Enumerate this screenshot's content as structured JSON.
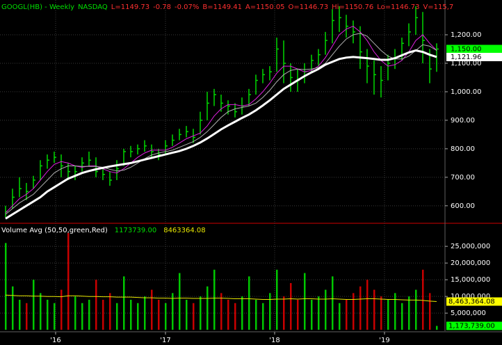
{
  "chart_data": [
    {
      "type": "ohlc",
      "title": "GOOGL(HB) - Weekly",
      "exchange": "NASDAQ",
      "title_color": "#00e000",
      "quote": [
        "L=1149.73",
        "-0.78",
        "-0.07%",
        "B=1149.41",
        "A=1150.05",
        "O=1146.73",
        "Hi=1150.76",
        "Lo=1146.73",
        "V=115,7"
      ],
      "quote_color": "#ff3030",
      "bar_color": "#00d800",
      "high": [
        600,
        660,
        700,
        680,
        705,
        760,
        780,
        790,
        780,
        750,
        740,
        770,
        790,
        770,
        730,
        720,
        760,
        800,
        810,
        815,
        830,
        815,
        800,
        830,
        850,
        870,
        880,
        870,
        930,
        1000,
        1010,
        990,
        970,
        960,
        980,
        1010,
        1060,
        1080,
        1090,
        1190,
        1180,
        1100,
        1080,
        1100,
        1130,
        1150,
        1210,
        1290,
        1300,
        1270,
        1250,
        1230,
        1150,
        1110,
        1090,
        1130,
        1150,
        1190,
        1240,
        1300,
        1280,
        1150,
        1170
      ],
      "low": [
        560,
        590,
        630,
        620,
        660,
        690,
        730,
        750,
        700,
        690,
        690,
        720,
        740,
        700,
        690,
        670,
        690,
        740,
        770,
        780,
        790,
        770,
        760,
        780,
        810,
        830,
        840,
        820,
        850,
        900,
        950,
        930,
        920,
        910,
        920,
        950,
        990,
        1030,
        1040,
        1070,
        1030,
        1000,
        1000,
        1030,
        1070,
        1090,
        1130,
        1170,
        1210,
        1190,
        1170,
        1080,
        1030,
        990,
        980,
        1040,
        1080,
        1110,
        1160,
        1200,
        1100,
        1030,
        1070
      ],
      "close": [
        580,
        630,
        660,
        650,
        690,
        740,
        760,
        770,
        740,
        720,
        720,
        750,
        760,
        720,
        710,
        690,
        730,
        790,
        790,
        800,
        810,
        790,
        780,
        810,
        830,
        850,
        860,
        840,
        900,
        960,
        990,
        960,
        950,
        930,
        950,
        990,
        1040,
        1060,
        1070,
        1150,
        1100,
        1050,
        1040,
        1070,
        1110,
        1130,
        1180,
        1250,
        1260,
        1230,
        1210,
        1140,
        1090,
        1060,
        1040,
        1100,
        1120,
        1170,
        1210,
        1260,
        1180,
        1080,
        1150
      ],
      "overlays": [
        {
          "color": "#e020e0",
          "width": 1,
          "values": [
            575,
            600,
            625,
            640,
            660,
            690,
            720,
            745,
            755,
            750,
            740,
            735,
            740,
            740,
            730,
            720,
            715,
            730,
            750,
            770,
            785,
            795,
            795,
            795,
            805,
            820,
            835,
            845,
            855,
            880,
            915,
            940,
            955,
            955,
            950,
            955,
            975,
            1000,
            1030,
            1065,
            1090,
            1090,
            1080,
            1070,
            1075,
            1090,
            1120,
            1160,
            1200,
            1220,
            1230,
            1210,
            1180,
            1140,
            1110,
            1090,
            1095,
            1110,
            1140,
            1180,
            1200,
            1170,
            1145
          ]
        },
        {
          "color": "#b0b0b0",
          "width": 1,
          "values": [
            570,
            590,
            610,
            625,
            640,
            665,
            690,
            715,
            730,
            740,
            740,
            738,
            738,
            738,
            735,
            728,
            722,
            725,
            735,
            750,
            765,
            778,
            785,
            790,
            795,
            805,
            815,
            825,
            840,
            860,
            885,
            910,
            930,
            940,
            945,
            950,
            960,
            980,
            1005,
            1035,
            1060,
            1075,
            1080,
            1078,
            1080,
            1085,
            1100,
            1130,
            1160,
            1185,
            1200,
            1205,
            1195,
            1170,
            1145,
            1125,
            1115,
            1115,
            1125,
            1145,
            1165,
            1160,
            1145
          ]
        },
        {
          "color": "#ffffff",
          "width": 3,
          "values": [
            555,
            570,
            585,
            600,
            615,
            630,
            650,
            665,
            680,
            695,
            705,
            715,
            722,
            728,
            733,
            738,
            742,
            746,
            750,
            756,
            762,
            768,
            774,
            780,
            786,
            792,
            800,
            810,
            822,
            836,
            852,
            868,
            882,
            895,
            908,
            920,
            935,
            952,
            970,
            990,
            1010,
            1025,
            1040,
            1055,
            1068,
            1080,
            1095,
            1105,
            1115,
            1120,
            1122,
            1120,
            1118,
            1115,
            1112,
            1112,
            1118,
            1128,
            1138,
            1145,
            1140,
            1130,
            1122
          ]
        }
      ],
      "xlim": [
        -0.8,
        63.2
      ],
      "xticks": [
        {
          "value": 7.2,
          "label": "'16"
        },
        {
          "value": 23,
          "label": "'17"
        },
        {
          "value": 38.7,
          "label": "'18"
        },
        {
          "value": 54.5,
          "label": "'19"
        }
      ],
      "ylim": [
        541,
        1322
      ],
      "yticks": [
        {
          "value": 600,
          "label": "600.00"
        },
        {
          "value": 700,
          "label": "700.00"
        },
        {
          "value": 800,
          "label": "800.00"
        },
        {
          "value": 900,
          "label": "900.00"
        },
        {
          "value": 1000,
          "label": "1,000.00"
        },
        {
          "value": 1100,
          "label": "1,100.00"
        },
        {
          "value": 1200,
          "label": "1,200.00"
        }
      ],
      "grid": true,
      "flags": [
        {
          "value": 1150,
          "label": "1,150.00",
          "color": "#00ff00"
        },
        {
          "value": 1121.96,
          "label": "1,121.96",
          "color": "#ffffff"
        }
      ]
    },
    {
      "type": "volume",
      "title": "Volume Avg (50,50,green,Red)",
      "readouts": [
        {
          "value": 1173739,
          "label": "1173739.00",
          "color": "#00e000"
        },
        {
          "value": 8463364.08,
          "label": "8463364.08",
          "color": "#e8e800"
        }
      ],
      "up_color": "#00c800",
      "down_color": "#c80000",
      "values": [
        26000000,
        13000000,
        9000000,
        8000000,
        15000000,
        11000000,
        9000000,
        8000000,
        12000000,
        29000000,
        10000000,
        8000000,
        9000000,
        15000000,
        9000000,
        11000000,
        8000000,
        16000000,
        9000000,
        8000000,
        10000000,
        12000000,
        9000000,
        8000000,
        11000000,
        17000000,
        9000000,
        8000000,
        10000000,
        13000000,
        18000000,
        11000000,
        9000000,
        8000000,
        10000000,
        16000000,
        9000000,
        8000000,
        11000000,
        18000000,
        10000000,
        14000000,
        9000000,
        17000000,
        9000000,
        10000000,
        12000000,
        16000000,
        8000000,
        9000000,
        11000000,
        13000000,
        15000000,
        12000000,
        10000000,
        9000000,
        11000000,
        8000000,
        10000000,
        12000000,
        18000000,
        11000000,
        1173739
      ],
      "average": {
        "color": "#e8e800",
        "values": [
          10400000,
          10300000,
          10200000,
          10200000,
          10100000,
          10100000,
          10000000,
          10000000,
          9900000,
          10200000,
          10200000,
          10100000,
          10000000,
          10000000,
          9900000,
          9900000,
          9800000,
          9800000,
          9800000,
          9700000,
          9600000,
          9600000,
          9500000,
          9500000,
          9400000,
          9500000,
          9500000,
          9400000,
          9400000,
          9400000,
          9500000,
          9500000,
          9400000,
          9300000,
          9300000,
          9300000,
          9200000,
          9100000,
          9100000,
          9200000,
          9200000,
          9300000,
          9200000,
          9300000,
          9300000,
          9200000,
          9200000,
          9300000,
          9200000,
          9100000,
          9100000,
          9200000,
          9300000,
          9300000,
          9200000,
          9100000,
          9100000,
          9000000,
          8900000,
          8900000,
          8800000,
          8600000,
          8463364.08
        ]
      },
      "ylim": [
        -800000,
        31700000
      ],
      "yticks": [
        {
          "value": 5000000,
          "label": "5,000,000"
        },
        {
          "value": 10000000,
          "label": "10,000,000"
        },
        {
          "value": 15000000,
          "label": "15,000,000"
        },
        {
          "value": 20000000,
          "label": "20,000,000"
        },
        {
          "value": 25000000,
          "label": "25,000,000"
        }
      ],
      "grid": true,
      "flags": [
        {
          "value": 8463364.08,
          "label": "8,463,364.08",
          "color": "#ffff00"
        },
        {
          "value": 1173739,
          "label": "1,173,739.00",
          "color": "#00ff00"
        }
      ]
    }
  ]
}
